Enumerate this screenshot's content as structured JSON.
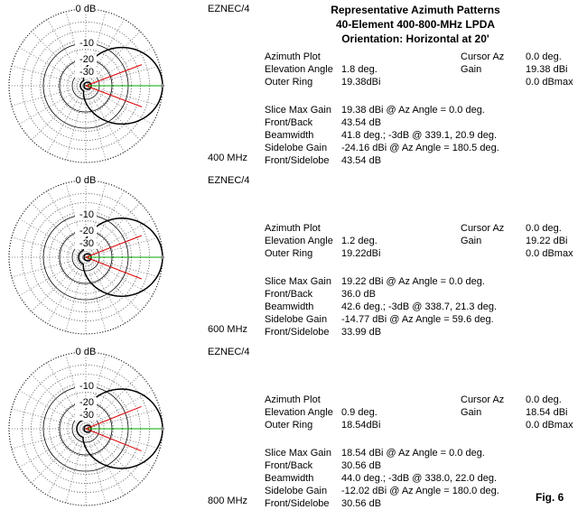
{
  "header": {
    "title_lines": [
      "Representative Azimuth Patterns",
      "40-Element 400-800-MHz LPDA",
      "Orientation:  Horizontal at 20'"
    ]
  },
  "panels": [
    {
      "program": "EZNEC/4",
      "frequency": "400 MHz",
      "ring_labels": [
        "0 dB",
        "-10",
        "-20",
        "-30"
      ],
      "info_rows": [
        [
          "Azimuth Plot"
        ],
        [
          "Elevation Angle",
          "1.8 deg."
        ],
        [
          "Outer Ring",
          "19.38dBi"
        ]
      ],
      "cursor_rows": [
        [
          "Cursor Az",
          "0.0 deg."
        ],
        [
          "Gain",
          "19.38 dBi"
        ],
        [
          "0.0 dBmax"
        ]
      ],
      "slice_rows": [
        [
          "Slice Max Gain",
          "19.38 dBi @ Az Angle = 0.0 deg."
        ],
        [
          "Front/Back",
          "43.54 dB"
        ],
        [
          "Beamwidth",
          "41.8 deg.; -3dB @ 339.1, 20.9 deg."
        ],
        [
          "Sidelobe Gain",
          "-24.16 dBi @ Az Angle = 180.5 deg."
        ],
        [
          "Front/Sidelobe",
          "43.54 dB"
        ]
      ]
    },
    {
      "program": "EZNEC/4",
      "frequency": "600 MHz",
      "ring_labels": [
        "0 dB",
        "-10",
        "-20",
        "-30"
      ],
      "info_rows": [
        [
          "Azimuth Plot"
        ],
        [
          "Elevation Angle",
          "1.2 deg."
        ],
        [
          "Outer Ring",
          "19.22dBi"
        ]
      ],
      "cursor_rows": [
        [
          "Cursor Az",
          "0.0 deg."
        ],
        [
          "Gain",
          "19.22 dBi"
        ],
        [
          "0.0 dBmax"
        ]
      ],
      "slice_rows": [
        [
          "Slice Max Gain",
          "19.22 dBi @ Az Angle = 0.0 deg."
        ],
        [
          "Front/Back",
          "36.0 dB"
        ],
        [
          "Beamwidth",
          "42.6 deg.; -3dB @ 338.7, 21.3 deg."
        ],
        [
          "Sidelobe Gain",
          "-14.77 dBi @ Az Angle = 59.6 deg."
        ],
        [
          "Front/Sidelobe",
          "33.99 dB"
        ]
      ]
    },
    {
      "program": "EZNEC/4",
      "frequency": "800 MHz",
      "ring_labels": [
        "0 dB",
        "-10",
        "-20",
        "-30"
      ],
      "info_rows": [
        [
          "Azimuth Plot"
        ],
        [
          "Elevation Angle",
          "0.9 deg."
        ],
        [
          "Outer Ring",
          "18.54dBi"
        ]
      ],
      "cursor_rows": [
        [
          "Cursor Az",
          "0.0 deg."
        ],
        [
          "Gain",
          "18.54 dBi"
        ],
        [
          "0.0 dBmax"
        ]
      ],
      "slice_rows": [
        [
          "Slice Max Gain",
          "18.54 dBi @ Az Angle = 0.0 deg."
        ],
        [
          "Front/Back",
          "30.56 dB"
        ],
        [
          "Beamwidth",
          "44.0 deg.; -3dB @ 338.0, 22.0 deg."
        ],
        [
          "Sidelobe Gain",
          "-12.02 dBi @ Az Angle = 180.0 deg."
        ],
        [
          "Front/Sidelobe",
          "30.56 dB"
        ]
      ]
    }
  ],
  "footer": {
    "figure_label": "Fig. 6"
  }
}
